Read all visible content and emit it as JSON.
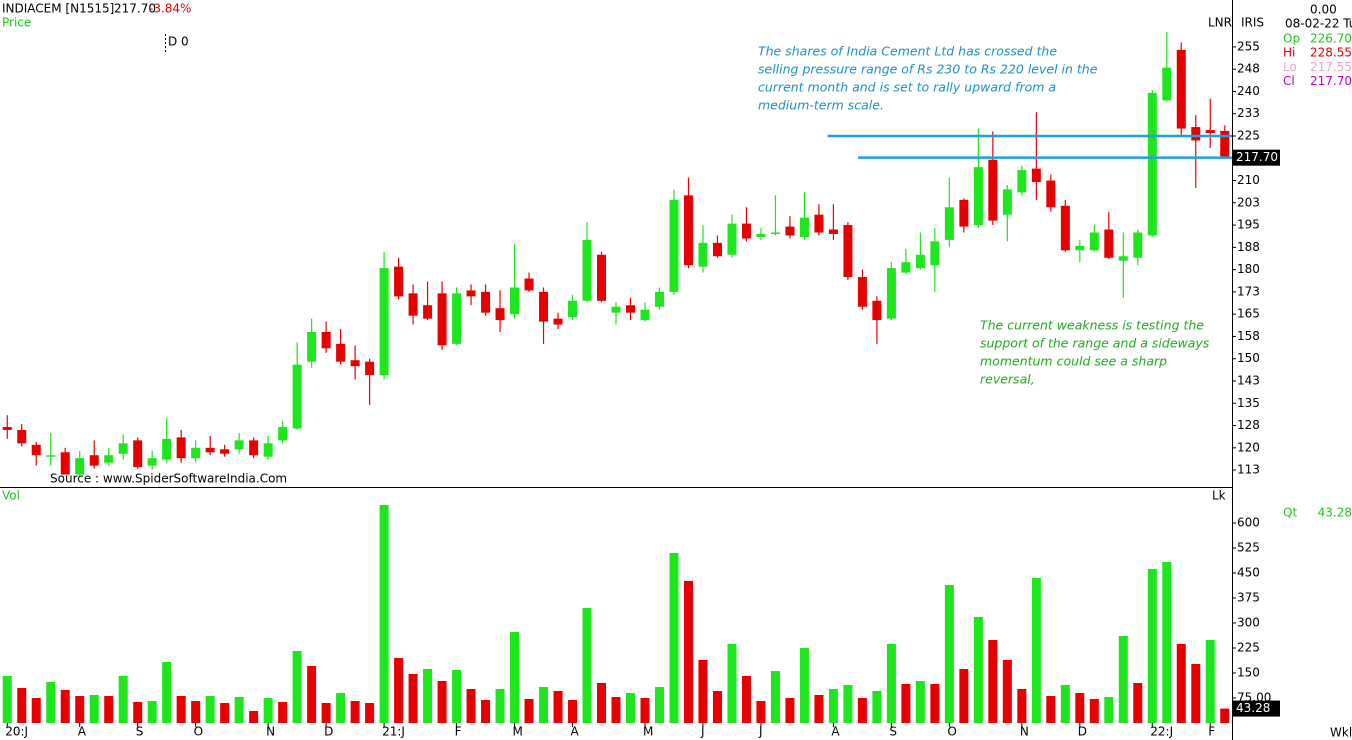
{
  "chart_data": {
    "type": "candlestick",
    "header": {
      "symbol": "INDIACEM [N1515]",
      "price": "217.70",
      "change": "-3.84%",
      "panel": "Price",
      "marker": "D 0",
      "tag1": "LNR",
      "tag2": "IRIS",
      "source": "Source : www.SpiderSoftwareIndia.Com",
      "period": "Wkl"
    },
    "info": {
      "top": "0.00",
      "date": "08-02-22 Tu",
      "rows": [
        {
          "label": "Op",
          "value": "226.70",
          "color": "#1ec81e"
        },
        {
          "label": "Hi",
          "value": "228.55",
          "color": "#e00000"
        },
        {
          "label": "Lo",
          "value": "217.55",
          "color": "#e8a8c8"
        },
        {
          "label": "Cl",
          "value": "217.70",
          "color": "#c000c0"
        }
      ]
    },
    "annotations": [
      {
        "lines": [
          "The shares of India Cement Ltd has crossed the",
          "selling pressure range of Rs 230 to Rs 220 level in the",
          "current month and is set to rally upward from a",
          "medium-term scale."
        ],
        "color": "#1e90c8"
      },
      {
        "lines": [
          "The current weakness is testing the",
          "support of the range and a sideways",
          "momentum could see a sharp",
          "reversal,"
        ],
        "color": "#22aa22"
      }
    ],
    "hlines": [
      {
        "value": 225,
        "start": 56.6,
        "color": "#1ea0e0"
      },
      {
        "value": 217.7,
        "start": 58.7,
        "color": "#1ea0e0"
      }
    ],
    "last_price": {
      "value": 217.7,
      "label": "217.70"
    },
    "up_color": "#1ee61e",
    "down_color": "#e60000",
    "categories": [
      "20:J",
      null,
      null,
      null,
      null,
      "A",
      null,
      null,
      null,
      "S",
      null,
      null,
      null,
      "O",
      null,
      null,
      null,
      null,
      "N",
      null,
      null,
      null,
      "D",
      null,
      null,
      null,
      "21:J",
      null,
      null,
      null,
      null,
      "F",
      null,
      null,
      null,
      "M",
      null,
      null,
      null,
      "A",
      null,
      null,
      null,
      null,
      "M",
      null,
      null,
      null,
      "J",
      null,
      null,
      null,
      "J",
      null,
      null,
      null,
      null,
      "A",
      null,
      null,
      null,
      "S",
      null,
      null,
      null,
      "O",
      null,
      null,
      null,
      null,
      "N",
      null,
      null,
      null,
      "D",
      null,
      null,
      null,
      null,
      "22:J",
      null,
      null,
      null,
      "F",
      null
    ],
    "open": [
      127,
      126,
      121,
      117,
      118.5,
      111,
      117.5,
      115,
      118,
      122.5,
      114,
      116,
      123.5,
      116.5,
      120,
      119.5,
      119.5,
      122.5,
      117,
      122.5,
      126.5,
      149,
      159,
      155,
      149.5,
      149,
      144.5,
      181,
      172,
      168,
      172,
      155,
      173,
      172.5,
      167,
      165,
      177,
      172.5,
      163.5,
      164,
      169.5,
      185,
      165.5,
      168,
      163,
      167.5,
      172.5,
      205,
      181,
      189,
      185,
      195.5,
      191,
      192,
      194.5,
      191,
      198.5,
      193.5,
      195,
      177.5,
      169.5,
      163.5,
      179,
      180.5,
      181.5,
      190,
      203.5,
      195,
      217,
      198.5,
      206,
      214,
      210,
      201.5,
      186.5,
      186.5,
      193.5,
      183,
      184,
      191.5,
      237,
      254,
      228,
      227,
      226.7
    ],
    "high": [
      131,
      128,
      122,
      125,
      120,
      119,
      122.5,
      120,
      124.5,
      123.5,
      119,
      130,
      126,
      122.5,
      124,
      121,
      125,
      123.5,
      124,
      129,
      155.5,
      163.5,
      162.5,
      160,
      154.5,
      150,
      186,
      184,
      175,
      176,
      176,
      174,
      175,
      175,
      173,
      188.5,
      179,
      174,
      165.5,
      171.5,
      196,
      186,
      169,
      170.5,
      169,
      174,
      207,
      211,
      195,
      191.5,
      198.5,
      201,
      194,
      205,
      198,
      206,
      202,
      202,
      196,
      180,
      171,
      182.5,
      187,
      192.5,
      194,
      211,
      204,
      227.5,
      226.5,
      208.5,
      215,
      233,
      212,
      203.5,
      190,
      195,
      199.5,
      192.5,
      193.5,
      240.5,
      260,
      256.5,
      232,
      237.5,
      228.55
    ],
    "low": [
      123,
      120.5,
      114,
      114,
      111,
      110.5,
      113,
      114,
      116,
      113,
      112.5,
      115,
      115,
      115,
      117.5,
      117,
      118,
      116.5,
      116,
      121.5,
      126,
      147,
      152,
      148,
      143,
      134.5,
      143,
      170,
      161.5,
      163,
      153,
      154.5,
      168,
      164.5,
      159,
      163.5,
      172.5,
      155,
      160,
      163,
      169,
      169,
      161.5,
      163,
      162.5,
      166.5,
      171.5,
      180.5,
      179,
      184,
      184,
      189.5,
      190,
      191.5,
      190.5,
      190,
      191.5,
      190,
      176.5,
      166.5,
      155,
      163,
      178.5,
      180,
      172.5,
      187.5,
      192.5,
      194,
      195,
      189.5,
      205,
      203.5,
      199.5,
      186,
      182.5,
      186,
      183.5,
      170.5,
      181.5,
      191,
      236.5,
      225,
      207.5,
      221,
      217.55
    ],
    "close": [
      126,
      121.5,
      117.5,
      117.5,
      111,
      116.5,
      114,
      117.5,
      121.5,
      113.5,
      116.5,
      123,
      116.5,
      120,
      118.5,
      118,
      122.5,
      117.5,
      121.5,
      127,
      148,
      159,
      153.5,
      149,
      147.5,
      144.5,
      180.5,
      171,
      164.5,
      163.5,
      154.5,
      172,
      171,
      165.5,
      163,
      174,
      173,
      162.5,
      161.5,
      169.5,
      190,
      169.5,
      167.5,
      165.5,
      166.5,
      172.5,
      203.5,
      181.5,
      189,
      184.5,
      195.5,
      190.5,
      192,
      192.5,
      191.5,
      197.5,
      192.5,
      192,
      177.5,
      167.5,
      163,
      180.5,
      182.5,
      185,
      189.5,
      201,
      194.5,
      214.5,
      196.5,
      207,
      213.5,
      209.5,
      201,
      186.5,
      188,
      192.5,
      184,
      184.5,
      192.5,
      239.5,
      248,
      227.5,
      223.5,
      226,
      217.7
    ],
    "xlim": [
      -0.5,
      84.5
    ],
    "ylim": [
      106.8,
      268.1
    ],
    "yticks": [
      {
        "value": 112.5,
        "label": "113"
      },
      120,
      {
        "value": 127.5,
        "label": "128"
      },
      135,
      {
        "value": 142.5,
        "label": "143"
      },
      150,
      {
        "value": 157.5,
        "label": "158"
      },
      165,
      {
        "value": 172.5,
        "label": "173"
      },
      180,
      {
        "value": 187.5,
        "label": "188"
      },
      195,
      {
        "value": 202.5,
        "label": "203"
      },
      210,
      225,
      {
        "value": 232.5,
        "label": "233"
      },
      240,
      {
        "value": 247.5,
        "label": "248"
      },
      255
    ],
    "volume": {
      "name": "Vol",
      "unit": "Lk",
      "qt_label": "Qt",
      "last": {
        "value": 43.28,
        "label": "43.28"
      },
      "values": [
        141,
        105,
        75,
        123,
        99,
        81,
        84,
        81,
        141,
        63,
        66,
        183,
        81,
        66,
        81,
        60,
        78,
        36,
        75,
        63,
        216,
        171,
        60,
        90,
        66,
        60,
        654,
        195,
        147,
        162,
        126,
        159,
        102,
        69,
        102,
        273,
        72,
        108,
        96,
        69,
        345,
        120,
        78,
        90,
        75,
        108,
        510,
        426,
        189,
        96,
        237,
        141,
        66,
        156,
        75,
        225,
        84,
        102,
        114,
        75,
        96,
        237,
        117,
        126,
        117,
        414,
        162,
        318,
        249,
        189,
        102,
        435,
        81,
        114,
        90,
        72,
        78,
        261,
        120,
        462,
        483,
        237,
        177,
        249,
        43.28
      ],
      "colors": [
        "#1ee61e",
        "#e60000",
        "#e60000",
        "#1ee61e",
        "#e60000",
        "#e60000",
        "#1ee61e",
        "#e60000",
        "#1ee61e",
        "#e60000",
        "#1ee61e",
        "#1ee61e",
        "#e60000",
        "#e60000",
        "#1ee61e",
        "#e60000",
        "#1ee61e",
        "#e60000",
        "#1ee61e",
        "#e60000",
        "#1ee61e",
        "#e60000",
        "#e60000",
        "#1ee61e",
        "#e60000",
        "#e60000",
        "#1ee61e",
        "#e60000",
        "#e60000",
        "#1ee61e",
        "#e60000",
        "#1ee61e",
        "#e60000",
        "#e60000",
        "#1ee61e",
        "#1ee61e",
        "#e60000",
        "#1ee61e",
        "#e60000",
        "#e60000",
        "#1ee61e",
        "#e60000",
        "#e60000",
        "#1ee61e",
        "#e60000",
        "#1ee61e",
        "#1ee61e",
        "#e60000",
        "#e60000",
        "#e60000",
        "#1ee61e",
        "#e60000",
        "#e60000",
        "#1ee61e",
        "#e60000",
        "#1ee61e",
        "#e60000",
        "#1ee61e",
        "#1ee61e",
        "#e60000",
        "#1ee61e",
        "#1ee61e",
        "#e60000",
        "#1ee61e",
        "#e60000",
        "#1ee61e",
        "#e60000",
        "#1ee61e",
        "#e60000",
        "#e60000",
        "#e60000",
        "#1ee61e",
        "#e60000",
        "#1ee61e",
        "#e60000",
        "#e60000",
        "#1ee61e",
        "#1ee61e",
        "#e60000",
        "#1ee61e",
        "#1ee61e",
        "#e60000",
        "#e60000",
        "#1ee61e",
        "#e60000"
      ],
      "ylim": [
        0,
        699
      ],
      "yticks": [
        {
          "value": 75,
          "label": "75.00"
        },
        150,
        225,
        300,
        375,
        450,
        525,
        600
      ]
    }
  }
}
